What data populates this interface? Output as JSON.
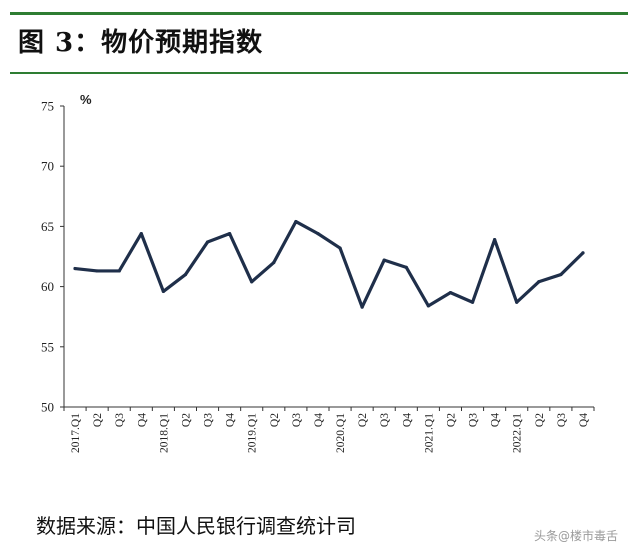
{
  "figure": {
    "title": "图 3：物价预期指数",
    "source": "数据来源：中国人民银行调查统计司",
    "watermark": "头条@楼市毒舌"
  },
  "chart_data": {
    "type": "line",
    "title": "",
    "xlabel": "",
    "ylabel": "%",
    "ylim": [
      50,
      75
    ],
    "yticks": [
      50,
      55,
      60,
      65,
      70,
      75
    ],
    "grid": false,
    "legend": "none",
    "line_color": "#1f2f4a",
    "categories": [
      "2017.Q1",
      "Q2",
      "Q3",
      "Q4",
      "2018.Q1",
      "Q2",
      "Q3",
      "Q4",
      "2019.Q1",
      "Q2",
      "Q3",
      "Q4",
      "2020.Q1",
      "Q2",
      "Q3",
      "Q4",
      "2021.Q1",
      "Q2",
      "Q3",
      "Q4",
      "2022.Q1",
      "Q2",
      "Q3",
      "Q4"
    ],
    "values": [
      61.5,
      61.3,
      61.3,
      64.4,
      59.6,
      61.0,
      63.7,
      64.4,
      60.4,
      62.0,
      65.4,
      64.4,
      63.2,
      58.3,
      62.2,
      61.6,
      58.4,
      59.5,
      58.7,
      63.9,
      58.7,
      60.4,
      61.0,
      62.8
    ]
  }
}
